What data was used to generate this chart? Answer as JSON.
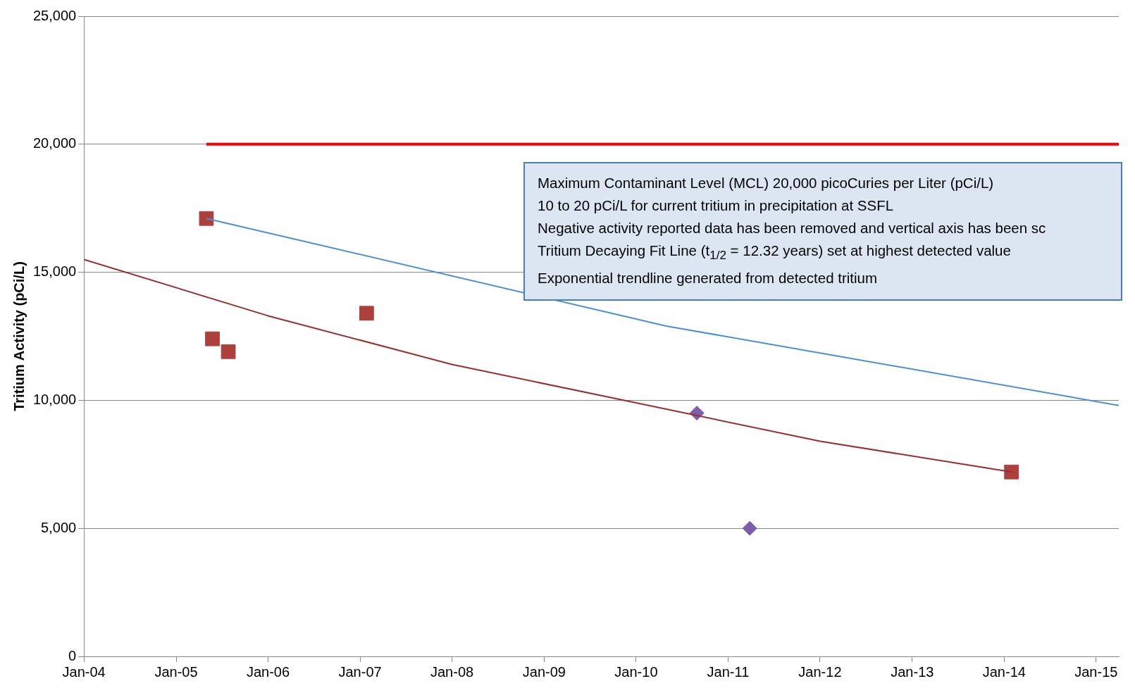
{
  "chart_data": {
    "type": "scatter",
    "ylabel": "Tritium Activity (pCi/L)",
    "xlim": [
      "2004-01-01",
      "2015-04-01"
    ],
    "ylim": [
      0,
      25000
    ],
    "xticks": [
      {
        "value": "2004-01-01",
        "label": "Jan-04"
      },
      {
        "value": "2005-01-01",
        "label": "Jan-05"
      },
      {
        "value": "2006-01-01",
        "label": "Jan-06"
      },
      {
        "value": "2007-01-01",
        "label": "Jan-07"
      },
      {
        "value": "2008-01-01",
        "label": "Jan-08"
      },
      {
        "value": "2009-01-01",
        "label": "Jan-09"
      },
      {
        "value": "2010-01-01",
        "label": "Jan-10"
      },
      {
        "value": "2011-01-01",
        "label": "Jan-11"
      },
      {
        "value": "2012-01-01",
        "label": "Jan-12"
      },
      {
        "value": "2013-01-01",
        "label": "Jan-13"
      },
      {
        "value": "2014-01-01",
        "label": "Jan-14"
      },
      {
        "value": "2015-01-01",
        "label": "Jan-15"
      }
    ],
    "yticks": [
      0,
      {
        "value": 5000,
        "label": "5,000"
      },
      {
        "value": 10000,
        "label": "10,000"
      },
      {
        "value": 15000,
        "label": "15,000"
      },
      {
        "value": 20000,
        "label": "20,000"
      },
      {
        "value": 25000,
        "label": "25,000"
      }
    ],
    "grid": "y",
    "legend": false,
    "series": [
      {
        "type": "line",
        "color": "#ff0000",
        "marker": "none",
        "x": [
          "2005-05-01",
          "2015-04-01"
        ],
        "values": [
          20000,
          20000
        ]
      },
      {
        "type": "line",
        "color": "#4a8fd8",
        "marker": "none",
        "x": [
          "2005-05-01",
          "2010-05-01",
          "2015-04-01"
        ],
        "values": [
          17100,
          12900,
          9800
        ]
      },
      {
        "type": "line",
        "color": "#9b2d2d",
        "marker": "none",
        "x": [
          "2004-01-01",
          "2006-01-01",
          "2008-01-01",
          "2010-01-01",
          "2012-01-01",
          "2014-02-01"
        ],
        "values": [
          15500,
          13300,
          11400,
          9900,
          8400,
          7200
        ]
      },
      {
        "type": "scatter",
        "color": "#ad403c",
        "marker": "square",
        "x": [
          "2005-05-01",
          "2005-05-25",
          "2005-07-27",
          "2007-01-27",
          "2014-01-30"
        ],
        "values": [
          17100,
          12400,
          11900,
          13400,
          7200
        ]
      },
      {
        "type": "scatter",
        "color": "#7b5fa8",
        "marker": "diamond",
        "x": [
          "2010-08-30",
          "2011-03-28"
        ],
        "values": [
          9500,
          5000
        ]
      }
    ],
    "annotations": [
      "Maximum Contaminant Level (MCL) 20,000 picoCuries per Liter (pCi/L)",
      "10 to 20 pCi/L for current tritium in precipitation at SSFL",
      "Negative activity reported data has been removed and vertical axis has been sc",
      "Tritium Decaying Fit Line (t$_{1/2}$ = 12.32 years) set at highest detected value",
      "Exponential trendline generated from detected tritium"
    ]
  }
}
